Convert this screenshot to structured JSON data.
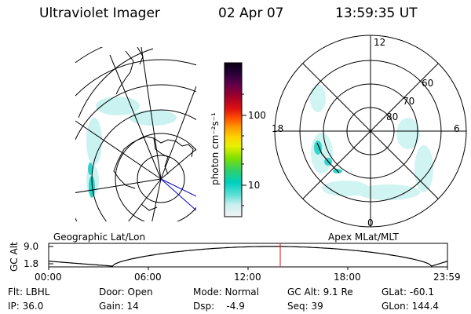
{
  "header": {
    "instrument": "Ultraviolet Imager",
    "date": "02 Apr 07",
    "time": "13:59:35 UT"
  },
  "colorbar": {
    "unit_label": "photon cm⁻²s⁻¹",
    "ticks": [
      "100",
      "10"
    ]
  },
  "polar_plot": {
    "mlt_labels": [
      "12",
      "18",
      "6",
      "0"
    ],
    "lat_labels": [
      "60",
      "70",
      "80"
    ]
  },
  "map_labels": {
    "left": "Geographic Lat/Lon",
    "right": "Apex MLat/MLT"
  },
  "altitude_plot": {
    "ylabel": "GC Alt",
    "yticks": [
      "9.0",
      "1.8"
    ],
    "xticks": [
      "00:00",
      "06:00",
      "12:00",
      "18:00",
      "23:59"
    ]
  },
  "status": {
    "filter": "Flt: LBHL",
    "ip": "IP: 36.0",
    "door": "Door: Open",
    "gain": "Gain: 14",
    "mode": "Mode: Normal",
    "dsp": "Dsp:    -4.9",
    "gc_alt": "GC Alt: 9.1 Re",
    "seq": "Seq: 39",
    "glat": "GLat: -60.1",
    "glon": "GLon: 144.4"
  },
  "colors": {
    "aurora": "#7fe8e0",
    "aurora_dark": "#22c9c3",
    "marker": "#ff0000",
    "nav_line": "#0000cc"
  }
}
